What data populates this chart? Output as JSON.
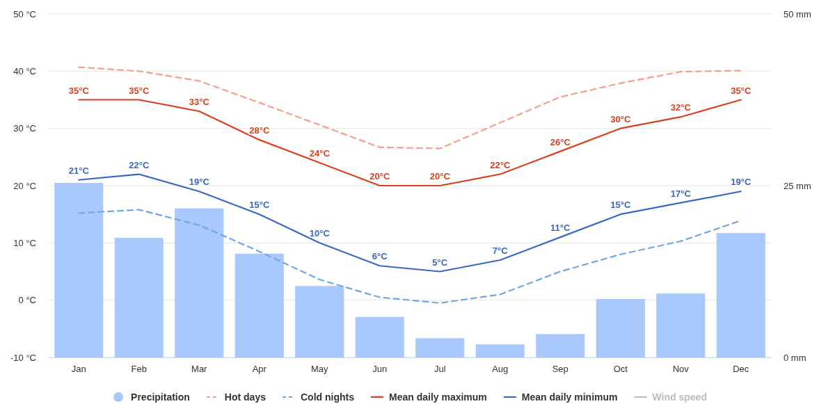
{
  "chart_data": {
    "type": "line",
    "categories": [
      "Jan",
      "Feb",
      "Mar",
      "Apr",
      "May",
      "Jun",
      "Jul",
      "Aug",
      "Sep",
      "Oct",
      "Nov",
      "Dec"
    ],
    "ylim": [
      -10,
      50
    ],
    "yticks": [
      {
        "value": -10,
        "label": "-10 °C"
      },
      {
        "value": 0,
        "label": "0 °C"
      },
      {
        "value": 10,
        "label": "10 °C"
      },
      {
        "value": 20,
        "label": "20 °C"
      },
      {
        "value": 30,
        "label": "30 °C"
      },
      {
        "value": 40,
        "label": "40 °C"
      },
      {
        "value": 50,
        "label": "50 °C"
      }
    ],
    "y2lim": [
      0,
      50
    ],
    "y2ticks": [
      {
        "value": 0,
        "label": "0 mm"
      },
      {
        "value": 25,
        "label": "25 mm"
      },
      {
        "value": 50,
        "label": "50 mm"
      }
    ],
    "grid": "y",
    "legend": "bottom",
    "marker": "none",
    "series": [
      {
        "name": "Precipitation",
        "type": "bar",
        "axis": "y2",
        "color": "#a9c8fb",
        "values": [
          25.4,
          17.4,
          21.7,
          15.1,
          10.4,
          5.9,
          2.8,
          1.9,
          3.4,
          8.5,
          9.3,
          18.1
        ]
      },
      {
        "name": "Hot days",
        "line_style": "dashed",
        "color": "#f4a08a",
        "values": [
          40.7,
          40,
          38.3,
          34.5,
          30.6,
          26.7,
          26.5,
          31,
          35.5,
          37.9,
          39.9,
          40.1
        ]
      },
      {
        "name": "Cold nights",
        "line_style": "dashed",
        "color": "#6fa8e0",
        "values": [
          15.2,
          15.8,
          13.1,
          8.5,
          3.6,
          0.5,
          -0.5,
          1,
          5,
          8,
          10.3,
          13.9
        ]
      },
      {
        "name": "Mean daily maximum",
        "line_style": "solid",
        "color": "#d9411e",
        "values": [
          35,
          35,
          33,
          28,
          24,
          20,
          20,
          22,
          26,
          30,
          32,
          35
        ],
        "value_labels": [
          "35°C",
          "35°C",
          "33°C",
          "28°C",
          "24°C",
          "20°C",
          "20°C",
          "22°C",
          "26°C",
          "30°C",
          "32°C",
          "35°C"
        ]
      },
      {
        "name": "Mean daily minimum",
        "line_style": "solid",
        "color": "#3a66c8",
        "values": [
          21,
          22,
          19,
          15,
          10,
          6,
          5,
          7,
          11,
          15,
          17,
          19
        ],
        "value_labels": [
          "21°C",
          "22°C",
          "19°C",
          "15°C",
          "10°C",
          "6°C",
          "5°C",
          "7°C",
          "11°C",
          "15°C",
          "17°C",
          "19°C"
        ]
      },
      {
        "name": "Wind speed",
        "line_style": "solid",
        "color": "#bbbbbb",
        "values": [
          null,
          null,
          null,
          null,
          null,
          null,
          null,
          null,
          null,
          null,
          null,
          null
        ]
      }
    ]
  }
}
